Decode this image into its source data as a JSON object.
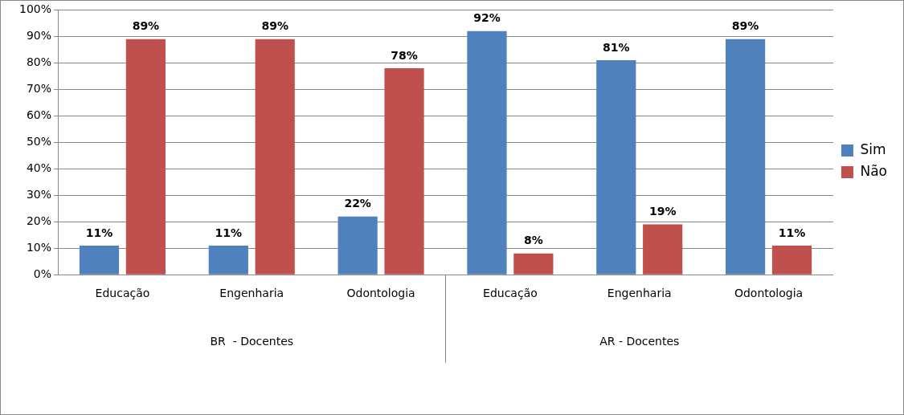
{
  "chart_data": {
    "type": "bar",
    "categories": [
      "Educação",
      "Engenharia",
      "Odontologia",
      "Educação",
      "Engenharia",
      "Odontologia"
    ],
    "annotations": [
      "BR  - Docentes",
      "AR - Docentes"
    ],
    "series": [
      {
        "name": "Sim",
        "color": "#4f81bd",
        "values": [
          11,
          11,
          22,
          92,
          81,
          89
        ],
        "value_labels": [
          "11%",
          "11%",
          "22%",
          "92%",
          "81%",
          "89%"
        ]
      },
      {
        "name": "Não",
        "color": "#c0504d",
        "values": [
          89,
          89,
          78,
          8,
          19,
          11
        ],
        "value_labels": [
          "89%",
          "89%",
          "78%",
          "8%",
          "19%",
          "11%"
        ]
      }
    ],
    "ylim": [
      0,
      100
    ],
    "yticks": [
      {
        "value": 0,
        "label": "0%"
      },
      {
        "value": 10,
        "label": "10%"
      },
      {
        "value": 20,
        "label": "20%"
      },
      {
        "value": 30,
        "label": "30%"
      },
      {
        "value": 40,
        "label": "40%"
      },
      {
        "value": 50,
        "label": "50%"
      },
      {
        "value": 60,
        "label": "60%"
      },
      {
        "value": 70,
        "label": "70%"
      },
      {
        "value": 80,
        "label": "80%"
      },
      {
        "value": 90,
        "label": "90%"
      },
      {
        "value": 100,
        "label": "100%"
      }
    ],
    "grid": "y",
    "legend": "right"
  }
}
